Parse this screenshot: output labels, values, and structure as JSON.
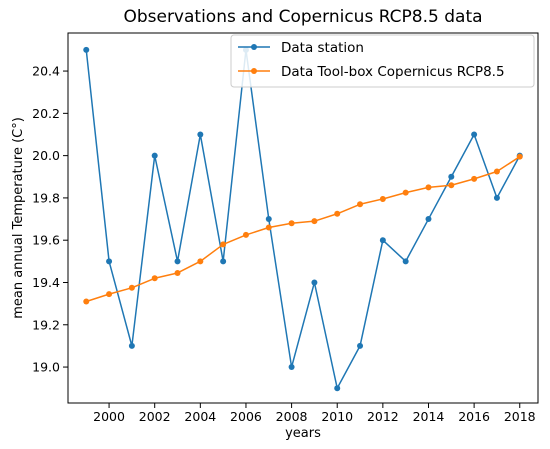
{
  "chart_data": {
    "type": "line",
    "title": "Observations and  Copernicus RCP8.5 data",
    "xlabel": "years",
    "ylabel": "mean annual Temperature (C°)",
    "xlim": [
      1998.2,
      2018.8
    ],
    "ylim": [
      18.83,
      20.58
    ],
    "x_ticks": [
      2000,
      2002,
      2004,
      2006,
      2008,
      2010,
      2012,
      2014,
      2016,
      2018
    ],
    "x_tick_labels": [
      "2000",
      "2002",
      "2004",
      "2006",
      "2008",
      "2010",
      "2012",
      "2014",
      "2016",
      "2018"
    ],
    "y_ticks": [
      19.0,
      19.2,
      19.4,
      19.6,
      19.8,
      20.0,
      20.2,
      20.4
    ],
    "y_tick_labels": [
      "19.0",
      "19.2",
      "19.4",
      "19.6",
      "19.8",
      "20.0",
      "20.2",
      "20.4"
    ],
    "grid": false,
    "legend_position": "top-right",
    "x": [
      1999,
      2000,
      2001,
      2002,
      2003,
      2004,
      2005,
      2006,
      2007,
      2008,
      2009,
      2010,
      2011,
      2012,
      2013,
      2014,
      2015,
      2016,
      2017,
      2018
    ],
    "series": [
      {
        "name": "Data station",
        "color": "#1f77b4",
        "values": [
          20.5,
          19.5,
          19.1,
          20.0,
          19.5,
          20.1,
          19.5,
          20.5,
          19.7,
          19.0,
          19.4,
          18.9,
          19.1,
          19.6,
          19.5,
          19.7,
          19.9,
          20.1,
          19.8,
          20.0
        ]
      },
      {
        "name": "Data Tool-box Copernicus RCP8.5",
        "color": "#ff7f0e",
        "values": [
          19.31,
          19.345,
          19.375,
          19.42,
          19.445,
          19.5,
          19.58,
          19.625,
          19.66,
          19.68,
          19.69,
          19.725,
          19.77,
          19.795,
          19.825,
          19.85,
          19.86,
          19.89,
          19.925,
          19.995
        ]
      }
    ]
  }
}
